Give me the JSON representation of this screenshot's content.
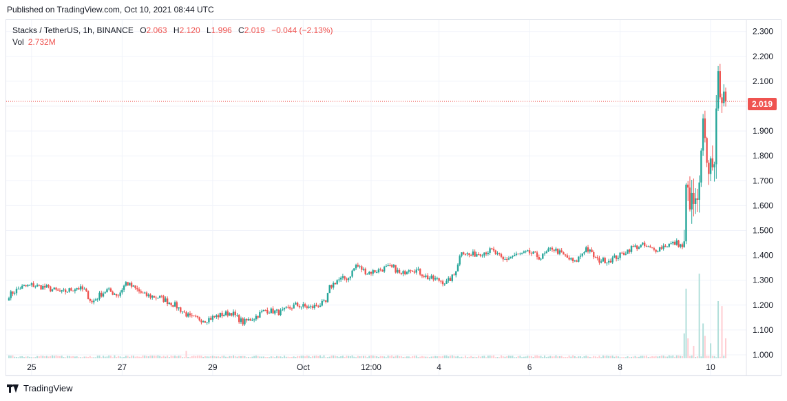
{
  "header": {
    "published": "Published on TradingView.com, Oct 10, 2021 08:44 UTC"
  },
  "legend": {
    "symbol": "Stacks / TetherUS, 1h, BINANCE",
    "o_label": "O",
    "o_value": "2.063",
    "h_label": "H",
    "h_value": "2.120",
    "l_label": "L",
    "l_value": "1.996",
    "c_label": "C",
    "c_value": "2.019",
    "change": "−0.044 (−2.13%)",
    "vol_label": "Vol",
    "vol_value": "2.732M"
  },
  "footer": {
    "brand": "TradingView"
  },
  "colors": {
    "up": "#26a69a",
    "down": "#ef5350",
    "grid": "#f0f3fa",
    "vol_up": "#b2dfdb",
    "vol_down": "#ffcdd2"
  },
  "chart_data": {
    "type": "candlestick",
    "symbol": "Stacks / TetherUS",
    "interval": "1h",
    "exchange": "BINANCE",
    "last_price": "2.019",
    "ylim": [
      0.985,
      2.34
    ],
    "y_ticks": [
      "1.000",
      "1.100",
      "1.200",
      "1.300",
      "1.400",
      "1.500",
      "1.600",
      "1.700",
      "1.800",
      "1.900",
      "2.000",
      "2.100",
      "2.200",
      "2.300"
    ],
    "x_ticks": [
      {
        "label": "25",
        "hour": 12
      },
      {
        "label": "27",
        "hour": 60
      },
      {
        "label": "29",
        "hour": 108
      },
      {
        "label": "Oct",
        "hour": 156
      },
      {
        "label": "12:00",
        "hour": 192
      },
      {
        "label": "4",
        "hour": 228
      },
      {
        "label": "6",
        "hour": 276
      },
      {
        "label": "8",
        "hour": 324
      },
      {
        "label": "10",
        "hour": 372
      }
    ],
    "hours_total": 381,
    "close_anchors": [
      [
        0,
        1.24
      ],
      [
        6,
        1.27
      ],
      [
        12,
        1.28
      ],
      [
        20,
        1.27
      ],
      [
        28,
        1.25
      ],
      [
        36,
        1.27
      ],
      [
        40,
        1.26
      ],
      [
        44,
        1.21
      ],
      [
        48,
        1.24
      ],
      [
        52,
        1.26
      ],
      [
        58,
        1.24
      ],
      [
        62,
        1.29
      ],
      [
        66,
        1.27
      ],
      [
        72,
        1.24
      ],
      [
        80,
        1.23
      ],
      [
        88,
        1.2
      ],
      [
        96,
        1.15
      ],
      [
        104,
        1.14
      ],
      [
        112,
        1.16
      ],
      [
        118,
        1.17
      ],
      [
        124,
        1.13
      ],
      [
        130,
        1.15
      ],
      [
        136,
        1.18
      ],
      [
        144,
        1.17
      ],
      [
        152,
        1.2
      ],
      [
        160,
        1.19
      ],
      [
        168,
        1.21
      ],
      [
        170,
        1.27
      ],
      [
        174,
        1.3
      ],
      [
        180,
        1.31
      ],
      [
        184,
        1.36
      ],
      [
        190,
        1.33
      ],
      [
        196,
        1.34
      ],
      [
        200,
        1.35
      ],
      [
        204,
        1.35
      ],
      [
        208,
        1.32
      ],
      [
        212,
        1.35
      ],
      [
        216,
        1.34
      ],
      [
        222,
        1.31
      ],
      [
        228,
        1.3
      ],
      [
        232,
        1.29
      ],
      [
        236,
        1.32
      ],
      [
        240,
        1.42
      ],
      [
        244,
        1.4
      ],
      [
        250,
        1.41
      ],
      [
        256,
        1.42
      ],
      [
        262,
        1.38
      ],
      [
        268,
        1.4
      ],
      [
        276,
        1.41
      ],
      [
        282,
        1.39
      ],
      [
        288,
        1.43
      ],
      [
        294,
        1.4
      ],
      [
        300,
        1.37
      ],
      [
        306,
        1.43
      ],
      [
        312,
        1.38
      ],
      [
        318,
        1.38
      ],
      [
        324,
        1.4
      ],
      [
        330,
        1.43
      ],
      [
        336,
        1.44
      ],
      [
        342,
        1.42
      ],
      [
        348,
        1.44
      ],
      [
        354,
        1.45
      ],
      [
        358,
        1.43
      ],
      [
        359,
        1.67
      ],
      [
        361,
        1.62
      ],
      [
        364,
        1.6
      ],
      [
        366,
        1.66
      ],
      [
        368,
        1.93
      ],
      [
        370,
        1.74
      ],
      [
        372,
        1.77
      ],
      [
        374,
        1.8
      ],
      [
        376,
        2.1
      ],
      [
        378,
        2.05
      ],
      [
        379,
        2.08
      ],
      [
        380,
        2.019
      ]
    ],
    "volume_spikes": [
      [
        94,
        0.03
      ],
      [
        358,
        0.1
      ],
      [
        359,
        0.28
      ],
      [
        360,
        0.08
      ],
      [
        363,
        0.05
      ],
      [
        366,
        0.34
      ],
      [
        368,
        0.14
      ],
      [
        369,
        0.09
      ],
      [
        372,
        0.06
      ],
      [
        376,
        0.23
      ],
      [
        378,
        0.21
      ],
      [
        380,
        0.08
      ]
    ]
  }
}
